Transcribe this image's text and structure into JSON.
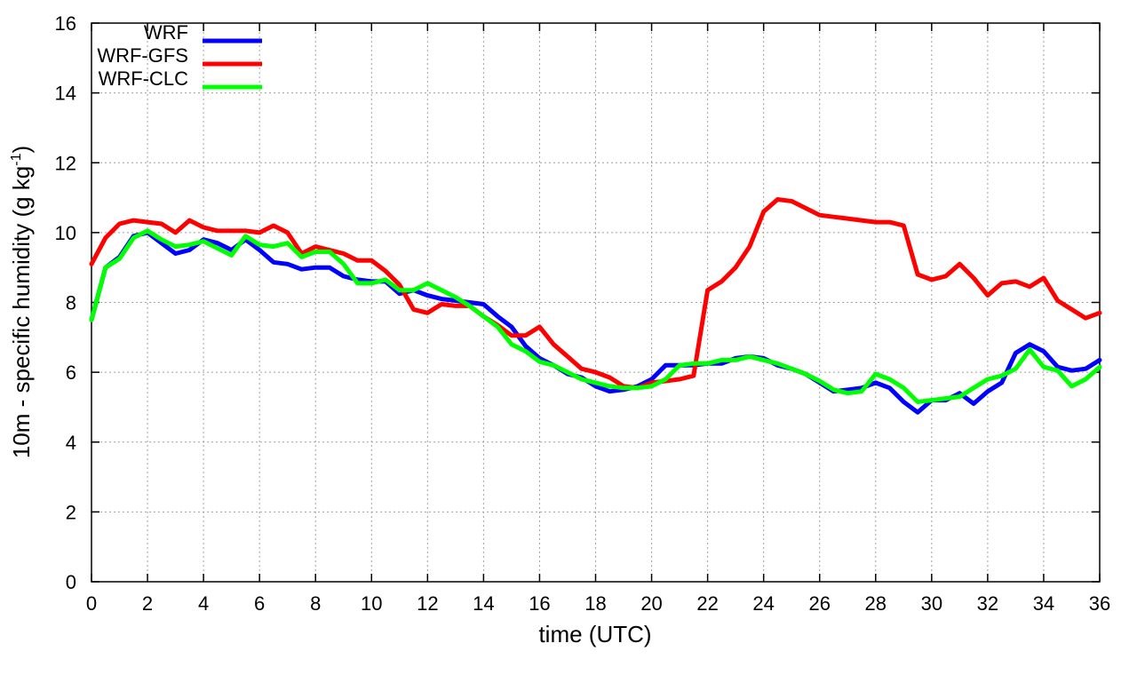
{
  "chart_data": {
    "type": "line",
    "xlabel": "time (UTC)",
    "ylabel": {
      "prefix": "10m - specific humidity (g kg",
      "superscript": "-1",
      "suffix": ")"
    },
    "xlim": [
      0,
      36
    ],
    "ylim": [
      0,
      16
    ],
    "xticks": [
      0,
      2,
      4,
      6,
      8,
      10,
      12,
      14,
      16,
      18,
      20,
      22,
      24,
      26,
      28,
      30,
      32,
      34,
      36
    ],
    "yticks": [
      0,
      2,
      4,
      6,
      8,
      10,
      12,
      14,
      16
    ],
    "grid": true,
    "legend_position": "top-left",
    "x": [
      0,
      0.5,
      1,
      1.5,
      2,
      2.5,
      3,
      3.5,
      4,
      4.5,
      5,
      5.5,
      6,
      6.5,
      7,
      7.5,
      8,
      8.5,
      9,
      9.5,
      10,
      10.5,
      11,
      11.5,
      12,
      12.5,
      13,
      13.5,
      14,
      14.5,
      15,
      15.5,
      16,
      16.5,
      17,
      17.5,
      18,
      18.5,
      19,
      19.5,
      20,
      20.5,
      21,
      21.5,
      22,
      22.5,
      23,
      23.5,
      24,
      24.5,
      25,
      25.5,
      26,
      26.5,
      27,
      27.5,
      28,
      28.5,
      29,
      29.5,
      30,
      30.5,
      31,
      31.5,
      32,
      32.5,
      33,
      33.5,
      34,
      34.5,
      35,
      35.5,
      36
    ],
    "series": [
      {
        "name": "WRF",
        "color": "#0000ff",
        "values": [
          7.5,
          9.0,
          9.3,
          9.9,
          10.0,
          9.7,
          9.4,
          9.5,
          9.8,
          9.7,
          9.5,
          9.8,
          9.5,
          9.15,
          9.1,
          8.95,
          9.0,
          9.0,
          8.75,
          8.65,
          8.6,
          8.6,
          8.25,
          8.35,
          8.2,
          8.1,
          8.05,
          8.0,
          7.95,
          7.6,
          7.3,
          6.75,
          6.4,
          6.2,
          5.95,
          5.85,
          5.6,
          5.45,
          5.5,
          5.6,
          5.8,
          6.2,
          6.2,
          6.2,
          6.25,
          6.25,
          6.4,
          6.45,
          6.4,
          6.2,
          6.1,
          5.95,
          5.7,
          5.45,
          5.5,
          5.55,
          5.7,
          5.55,
          5.15,
          4.85,
          5.2,
          5.2,
          5.4,
          5.1,
          5.45,
          5.7,
          6.55,
          6.8,
          6.6,
          6.15,
          6.05,
          6.1,
          6.35
        ]
      },
      {
        "name": "WRF-GFS",
        "color": "#ff0000",
        "values": [
          9.1,
          9.85,
          10.25,
          10.35,
          10.3,
          10.25,
          10.0,
          10.35,
          10.15,
          10.05,
          10.05,
          10.05,
          10.0,
          10.2,
          10.0,
          9.4,
          9.6,
          9.5,
          9.4,
          9.2,
          9.2,
          8.9,
          8.5,
          7.8,
          7.7,
          7.95,
          7.9,
          7.9,
          7.6,
          7.35,
          7.05,
          7.05,
          7.3,
          6.8,
          6.45,
          6.1,
          6.0,
          5.85,
          5.6,
          5.55,
          5.7,
          5.75,
          5.8,
          5.9,
          8.35,
          8.6,
          9.0,
          9.6,
          10.6,
          10.95,
          10.9,
          10.7,
          10.5,
          10.45,
          10.4,
          10.35,
          10.3,
          10.3,
          10.2,
          8.8,
          8.65,
          8.75,
          9.1,
          8.7,
          8.2,
          8.55,
          8.6,
          8.45,
          8.7,
          8.05,
          7.8,
          7.55,
          7.7
        ]
      },
      {
        "name": "WRF-CLC",
        "color": "#00ff00",
        "values": [
          7.5,
          9.0,
          9.25,
          9.85,
          10.05,
          9.8,
          9.6,
          9.65,
          9.75,
          9.55,
          9.35,
          9.9,
          9.65,
          9.6,
          9.7,
          9.3,
          9.45,
          9.45,
          9.1,
          8.55,
          8.55,
          8.65,
          8.35,
          8.35,
          8.55,
          8.35,
          8.15,
          7.9,
          7.6,
          7.3,
          6.8,
          6.6,
          6.3,
          6.2,
          6.0,
          5.8,
          5.7,
          5.6,
          5.55,
          5.55,
          5.6,
          5.8,
          6.2,
          6.25,
          6.25,
          6.35,
          6.35,
          6.45,
          6.35,
          6.25,
          6.1,
          5.95,
          5.75,
          5.5,
          5.4,
          5.45,
          5.95,
          5.8,
          5.55,
          5.15,
          5.2,
          5.25,
          5.3,
          5.55,
          5.8,
          5.9,
          6.1,
          6.65,
          6.15,
          6.05,
          5.6,
          5.8,
          6.15
        ]
      }
    ]
  }
}
